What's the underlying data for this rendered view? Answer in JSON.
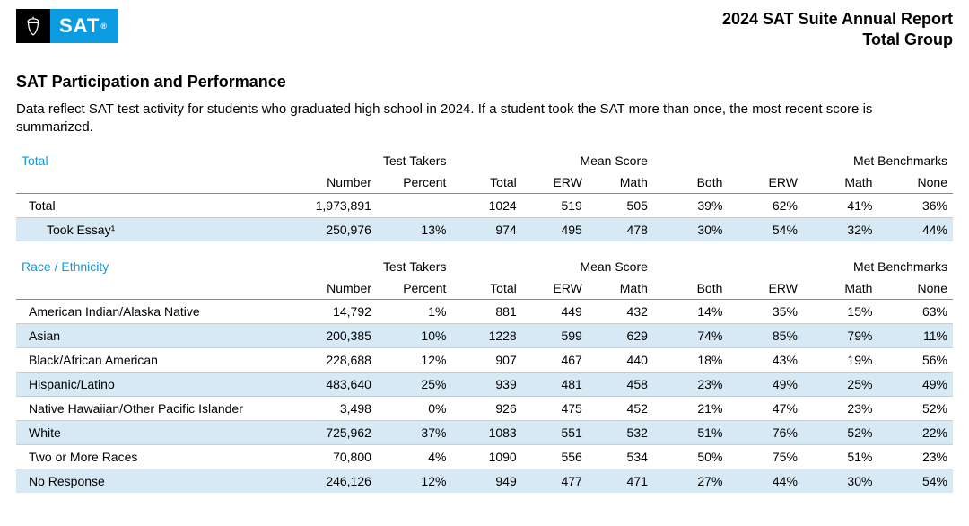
{
  "header": {
    "logo_text": "SAT",
    "report_line1": "2024 SAT Suite Annual Report",
    "report_line2": "Total Group"
  },
  "page": {
    "title": "SAT Participation and Performance",
    "intro": "Data reflect SAT test activity for students who graduated high school in 2024. If a student took the SAT more than once, the most recent score is summarized."
  },
  "column_groups": {
    "test_takers": "Test Takers",
    "mean_score": "Mean Score",
    "benchmarks": "Met Benchmarks"
  },
  "sub_headers": {
    "number": "Number",
    "percent": "Percent",
    "total": "Total",
    "erw": "ERW",
    "math": "Math",
    "both": "Both",
    "b_erw": "ERW",
    "b_math": "Math",
    "none": "None"
  },
  "sections": [
    {
      "title": "Total",
      "rows": [
        {
          "label": "Total",
          "indent": false,
          "striped": false,
          "number": "1,973,891",
          "percent": "",
          "total": "1024",
          "erw": "519",
          "math": "505",
          "both": "39%",
          "b_erw": "62%",
          "b_math": "41%",
          "none": "36%"
        },
        {
          "label": "Took Essay¹",
          "indent": true,
          "striped": true,
          "number": "250,976",
          "percent": "13%",
          "total": "974",
          "erw": "495",
          "math": "478",
          "both": "30%",
          "b_erw": "54%",
          "b_math": "32%",
          "none": "44%"
        }
      ]
    },
    {
      "title": "Race / Ethnicity",
      "rows": [
        {
          "label": "American Indian/Alaska Native",
          "striped": false,
          "number": "14,792",
          "percent": "1%",
          "total": "881",
          "erw": "449",
          "math": "432",
          "both": "14%",
          "b_erw": "35%",
          "b_math": "15%",
          "none": "63%"
        },
        {
          "label": "Asian",
          "striped": true,
          "number": "200,385",
          "percent": "10%",
          "total": "1228",
          "erw": "599",
          "math": "629",
          "both": "74%",
          "b_erw": "85%",
          "b_math": "79%",
          "none": "11%"
        },
        {
          "label": "Black/African American",
          "striped": false,
          "number": "228,688",
          "percent": "12%",
          "total": "907",
          "erw": "467",
          "math": "440",
          "both": "18%",
          "b_erw": "43%",
          "b_math": "19%",
          "none": "56%"
        },
        {
          "label": "Hispanic/Latino",
          "striped": true,
          "number": "483,640",
          "percent": "25%",
          "total": "939",
          "erw": "481",
          "math": "458",
          "both": "23%",
          "b_erw": "49%",
          "b_math": "25%",
          "none": "49%"
        },
        {
          "label": "Native Hawaiian/Other Pacific Islander",
          "striped": false,
          "number": "3,498",
          "percent": "0%",
          "total": "926",
          "erw": "475",
          "math": "452",
          "both": "21%",
          "b_erw": "47%",
          "b_math": "23%",
          "none": "52%"
        },
        {
          "label": "White",
          "striped": true,
          "number": "725,962",
          "percent": "37%",
          "total": "1083",
          "erw": "551",
          "math": "532",
          "both": "51%",
          "b_erw": "76%",
          "b_math": "52%",
          "none": "22%"
        },
        {
          "label": "Two or More Races",
          "striped": false,
          "number": "70,800",
          "percent": "4%",
          "total": "1090",
          "erw": "556",
          "math": "534",
          "both": "50%",
          "b_erw": "75%",
          "b_math": "51%",
          "none": "23%"
        },
        {
          "label": "No Response",
          "striped": true,
          "number": "246,126",
          "percent": "12%",
          "total": "949",
          "erw": "477",
          "math": "471",
          "both": "27%",
          "b_erw": "44%",
          "b_math": "30%",
          "none": "54%"
        }
      ]
    }
  ],
  "colors": {
    "accent": "#0a9be1",
    "stripe": "#d6e9f5"
  }
}
